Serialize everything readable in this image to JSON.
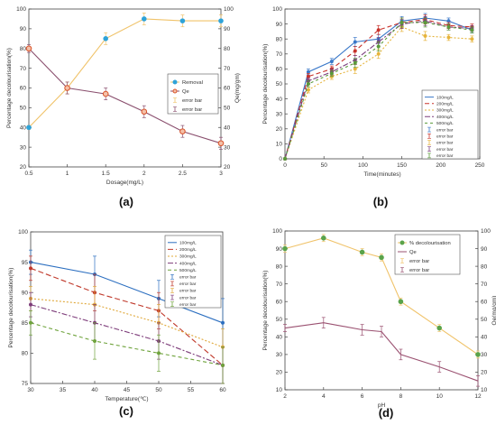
{
  "chart_data": [
    {
      "panel": "a",
      "caption": "(a)",
      "type": "line",
      "xlabel": "Dosage(mg/L)",
      "ylabel": "Percentage decolourisation(%)",
      "ylabel_right": "Qe(mg/gm)",
      "xlim": [
        0.5,
        3
      ],
      "ylim": [
        20,
        100
      ],
      "ylim_right": [
        20,
        100
      ],
      "xticks": [
        "0.5",
        "1",
        "1.5",
        "2",
        "2.5",
        "3"
      ],
      "yticks": [
        "20",
        "30",
        "40",
        "50",
        "60",
        "70",
        "80",
        "90",
        "100"
      ],
      "yticks_right": [
        "20",
        "30",
        "40",
        "50",
        "60",
        "70",
        "80",
        "90",
        "100"
      ],
      "grid": false,
      "legend_position": "right",
      "legend": [
        "Removal",
        "Qe",
        "error bar",
        "error bar"
      ],
      "series": [
        {
          "name": "Removal",
          "axis": "left",
          "color": "#f0c36a",
          "marker": "circle",
          "marker_color": "#2ea3d9",
          "x": [
            0.5,
            1,
            1.5,
            2,
            2.5,
            3
          ],
          "values": [
            40,
            60,
            85,
            95,
            94,
            94
          ],
          "errors": [
            1,
            3,
            3,
            3,
            3,
            3
          ]
        },
        {
          "name": "Qe",
          "axis": "right",
          "color": "#8a4f6e",
          "marker": "circle-open",
          "marker_color": "#d9542b",
          "x": [
            0.5,
            1,
            1.5,
            2,
            2.5,
            3
          ],
          "values": [
            80,
            60,
            57,
            48,
            38,
            32
          ],
          "errors": [
            2,
            3,
            3,
            3,
            3,
            3
          ]
        }
      ]
    },
    {
      "panel": "b",
      "caption": "(b)",
      "type": "line",
      "xlabel": "Time(minutes)",
      "ylabel": "Percentage decolourisation(%)",
      "xlim": [
        0,
        250
      ],
      "ylim": [
        0,
        100
      ],
      "xticks": [
        "0",
        "50",
        "100",
        "150",
        "200",
        "250"
      ],
      "yticks": [
        "0",
        "10",
        "20",
        "30",
        "40",
        "50",
        "60",
        "70",
        "80",
        "90",
        "100"
      ],
      "grid": false,
      "legend_position": "bottom-right",
      "legend": [
        "100mg/L",
        "200mg/L",
        "300mg/L",
        "400mg/L",
        "500mg/L",
        "error bar",
        "error bar",
        "error bar",
        "error bar",
        "error bar"
      ],
      "series": [
        {
          "name": "100mg/L",
          "color": "#3a78c9",
          "dash": "",
          "x": [
            0,
            30,
            60,
            90,
            120,
            150,
            180,
            210,
            240
          ],
          "values": [
            0,
            58,
            65,
            78,
            80,
            92,
            94,
            92,
            86
          ],
          "errors": [
            0,
            2,
            2,
            3,
            3,
            3,
            3,
            2,
            2
          ]
        },
        {
          "name": "200mg/L",
          "color": "#c8322b",
          "dash": "5,3",
          "x": [
            0,
            30,
            60,
            90,
            120,
            150,
            180,
            210,
            240
          ],
          "values": [
            0,
            55,
            60,
            72,
            86,
            91,
            93,
            89,
            88
          ],
          "errors": [
            0,
            2,
            2,
            3,
            3,
            3,
            3,
            2,
            2
          ]
        },
        {
          "name": "300mg/L",
          "color": "#e6b43c",
          "dash": "2,2",
          "x": [
            0,
            30,
            60,
            90,
            120,
            150,
            180,
            210,
            240
          ],
          "values": [
            0,
            46,
            55,
            60,
            70,
            88,
            82,
            81,
            80
          ],
          "errors": [
            0,
            2,
            2,
            3,
            3,
            3,
            3,
            2,
            2
          ]
        },
        {
          "name": "400mg/L",
          "color": "#7b3f7d",
          "dash": "6,2,2,2",
          "x": [
            0,
            30,
            60,
            90,
            120,
            150,
            180,
            210,
            240
          ],
          "values": [
            0,
            52,
            58,
            66,
            78,
            90,
            92,
            88,
            87
          ],
          "errors": [
            0,
            2,
            2,
            3,
            3,
            3,
            3,
            2,
            2
          ]
        },
        {
          "name": "500mg/L",
          "color": "#5a9a3a",
          "dash": "3,3",
          "x": [
            0,
            30,
            60,
            90,
            120,
            150,
            180,
            210,
            240
          ],
          "values": [
            0,
            50,
            57,
            64,
            75,
            91,
            91,
            88,
            86
          ],
          "errors": [
            0,
            2,
            2,
            3,
            3,
            3,
            3,
            2,
            2
          ]
        }
      ]
    },
    {
      "panel": "c",
      "caption": "(c)",
      "type": "line",
      "xlabel": "Temperature(℃)",
      "ylabel": "Percentage decolourisation(%)",
      "xlim": [
        30,
        60
      ],
      "ylim": [
        75,
        100
      ],
      "xticks": [
        "30",
        "35",
        "40",
        "45",
        "50",
        "55",
        "60"
      ],
      "yticks": [
        "75",
        "80",
        "85",
        "90",
        "95",
        "100"
      ],
      "grid": false,
      "legend_position": "top-right",
      "legend": [
        "100mg/L",
        "200mg/L",
        "300mg/L",
        "400mg/L",
        "500mg/L",
        "error bar",
        "error bar",
        "error bar",
        "error bar",
        "error bar"
      ],
      "series": [
        {
          "name": "100mg/L",
          "color": "#2c6fc0",
          "dash": "",
          "x": [
            30,
            40,
            50,
            60
          ],
          "values": [
            95,
            93,
            89,
            85
          ],
          "errors": [
            2,
            3,
            3,
            4
          ]
        },
        {
          "name": "200mg/L",
          "color": "#c0392b",
          "dash": "6,3",
          "x": [
            30,
            40,
            50,
            60
          ],
          "values": [
            94,
            90,
            87,
            78
          ],
          "errors": [
            2,
            3,
            3,
            3
          ]
        },
        {
          "name": "300mg/L",
          "color": "#e0a83a",
          "dash": "2,2",
          "x": [
            30,
            40,
            50,
            60
          ],
          "values": [
            89,
            88,
            85,
            81
          ],
          "errors": [
            2,
            3,
            3,
            3
          ]
        },
        {
          "name": "400mg/L",
          "color": "#7d3c7a",
          "dash": "6,2,2,2",
          "x": [
            30,
            40,
            50,
            60
          ],
          "values": [
            88,
            85,
            82,
            78
          ],
          "errors": [
            2,
            3,
            3,
            3
          ]
        },
        {
          "name": "500mg/L",
          "color": "#6fa33c",
          "dash": "4,3",
          "x": [
            30,
            40,
            50,
            60
          ],
          "values": [
            85,
            82,
            80,
            78
          ],
          "errors": [
            2,
            3,
            3,
            3
          ]
        }
      ]
    },
    {
      "panel": "d",
      "caption": "(d)",
      "type": "line",
      "xlabel": "pH",
      "ylabel": "Percentage decolourisation(%)",
      "ylabel_right": "Qe(mg/gm)",
      "xlim": [
        2,
        12
      ],
      "ylim": [
        10,
        100
      ],
      "ylim_right": [
        10,
        100
      ],
      "xticks": [
        "2",
        "4",
        "6",
        "8",
        "10",
        "12"
      ],
      "yticks": [
        "10",
        "20",
        "30",
        "40",
        "50",
        "60",
        "70",
        "80",
        "90",
        "100"
      ],
      "yticks_right": [
        "10",
        "20",
        "30",
        "40",
        "50",
        "60",
        "70",
        "80",
        "90",
        "100"
      ],
      "grid": false,
      "legend_position": "top-right",
      "legend": [
        "% decolourisation",
        "Qe",
        "error bar",
        "error bar"
      ],
      "series": [
        {
          "name": "% decolourisation",
          "axis": "left",
          "color": "#f0c36a",
          "marker": "circle",
          "marker_color": "#5aa34a",
          "x": [
            2,
            4,
            6,
            7,
            8,
            10,
            12
          ],
          "values": [
            90,
            96,
            88,
            85,
            60,
            45,
            30
          ],
          "errors": [
            2,
            2,
            2,
            2,
            2,
            2,
            2
          ]
        },
        {
          "name": "Qe",
          "axis": "right",
          "color": "#9a5070",
          "marker": "none",
          "marker_color": "#9a5070",
          "x": [
            2,
            4,
            6,
            7,
            8,
            10,
            12
          ],
          "values": [
            45,
            48,
            44,
            43,
            30,
            23,
            15
          ],
          "errors": [
            2,
            3,
            3,
            3,
            3,
            3,
            3
          ]
        }
      ]
    }
  ]
}
